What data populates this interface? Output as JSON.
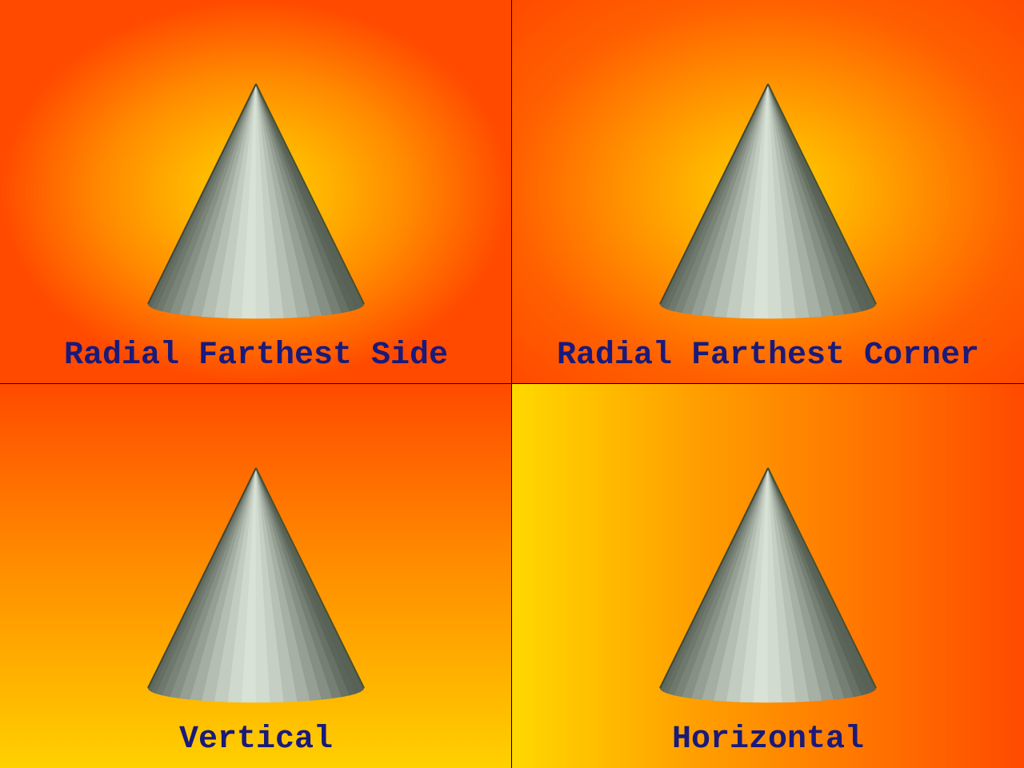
{
  "panels": [
    {
      "label": "Radial Farthest Side"
    },
    {
      "label": "Radial Farthest Corner"
    },
    {
      "label": "Vertical"
    },
    {
      "label": "Horizontal"
    }
  ],
  "colors": {
    "label_text": "#1a1a7a",
    "gradient_inner": "#ffd000",
    "gradient_outer": "#ff4a00",
    "cone_light": "#d8e2d6",
    "cone_dark": "#5f6a5c"
  },
  "icons": [
    "cone-icon"
  ]
}
